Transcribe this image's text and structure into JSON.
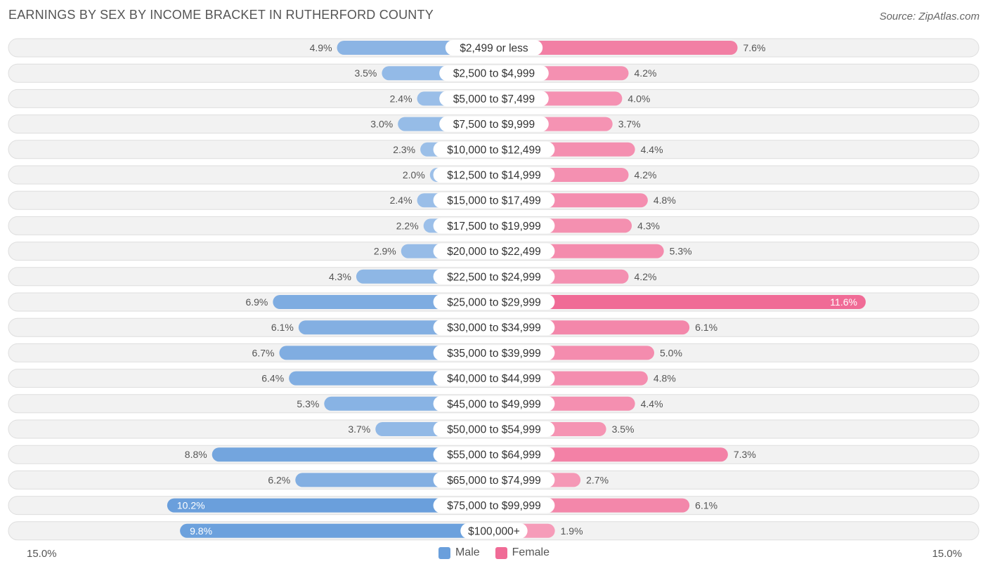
{
  "title": "EARNINGS BY SEX BY INCOME BRACKET IN RUTHERFORD COUNTY",
  "source": "Source: ZipAtlas.com",
  "colors": {
    "male": "#6a9fdc",
    "male_light": "#a9c8ec",
    "female": "#f06b96",
    "female_light": "#f7a5c0"
  },
  "chart_data": {
    "type": "bar",
    "orientation": "horizontal-diverging",
    "categories": [
      "$2,499 or less",
      "$2,500 to $4,999",
      "$5,000 to $7,499",
      "$7,500 to $9,999",
      "$10,000 to $12,499",
      "$12,500 to $14,999",
      "$15,000 to $17,499",
      "$17,500 to $19,999",
      "$20,000 to $22,499",
      "$22,500 to $24,999",
      "$25,000 to $29,999",
      "$30,000 to $34,999",
      "$35,000 to $39,999",
      "$40,000 to $44,999",
      "$45,000 to $49,999",
      "$50,000 to $54,999",
      "$55,000 to $64,999",
      "$65,000 to $74,999",
      "$75,000 to $99,999",
      "$100,000+"
    ],
    "series": [
      {
        "name": "Male",
        "values": [
          4.9,
          3.5,
          2.4,
          3.0,
          2.3,
          2.0,
          2.4,
          2.2,
          2.9,
          4.3,
          6.9,
          6.1,
          6.7,
          6.4,
          5.3,
          3.7,
          8.8,
          6.2,
          10.2,
          9.8
        ],
        "labels": [
          "4.9%",
          "3.5%",
          "2.4%",
          "3.0%",
          "2.3%",
          "2.0%",
          "2.4%",
          "2.2%",
          "2.9%",
          "4.3%",
          "6.9%",
          "6.1%",
          "6.7%",
          "6.4%",
          "5.3%",
          "3.7%",
          "8.8%",
          "6.2%",
          "10.2%",
          "9.8%"
        ]
      },
      {
        "name": "Female",
        "values": [
          7.6,
          4.2,
          4.0,
          3.7,
          4.4,
          4.2,
          4.8,
          4.3,
          5.3,
          4.2,
          11.6,
          6.1,
          5.0,
          4.8,
          4.4,
          3.5,
          7.3,
          2.7,
          6.1,
          1.9
        ],
        "labels": [
          "7.6%",
          "4.2%",
          "4.0%",
          "3.7%",
          "4.4%",
          "4.2%",
          "4.8%",
          "4.3%",
          "5.3%",
          "4.2%",
          "11.6%",
          "6.1%",
          "5.0%",
          "4.8%",
          "4.4%",
          "3.5%",
          "7.3%",
          "2.7%",
          "6.1%",
          "1.9%"
        ]
      }
    ],
    "axis_max": 15.0,
    "axis_labels": {
      "left": "15.0%",
      "right": "15.0%"
    },
    "legend": [
      "Male",
      "Female"
    ],
    "legend_position": "bottom-center"
  }
}
